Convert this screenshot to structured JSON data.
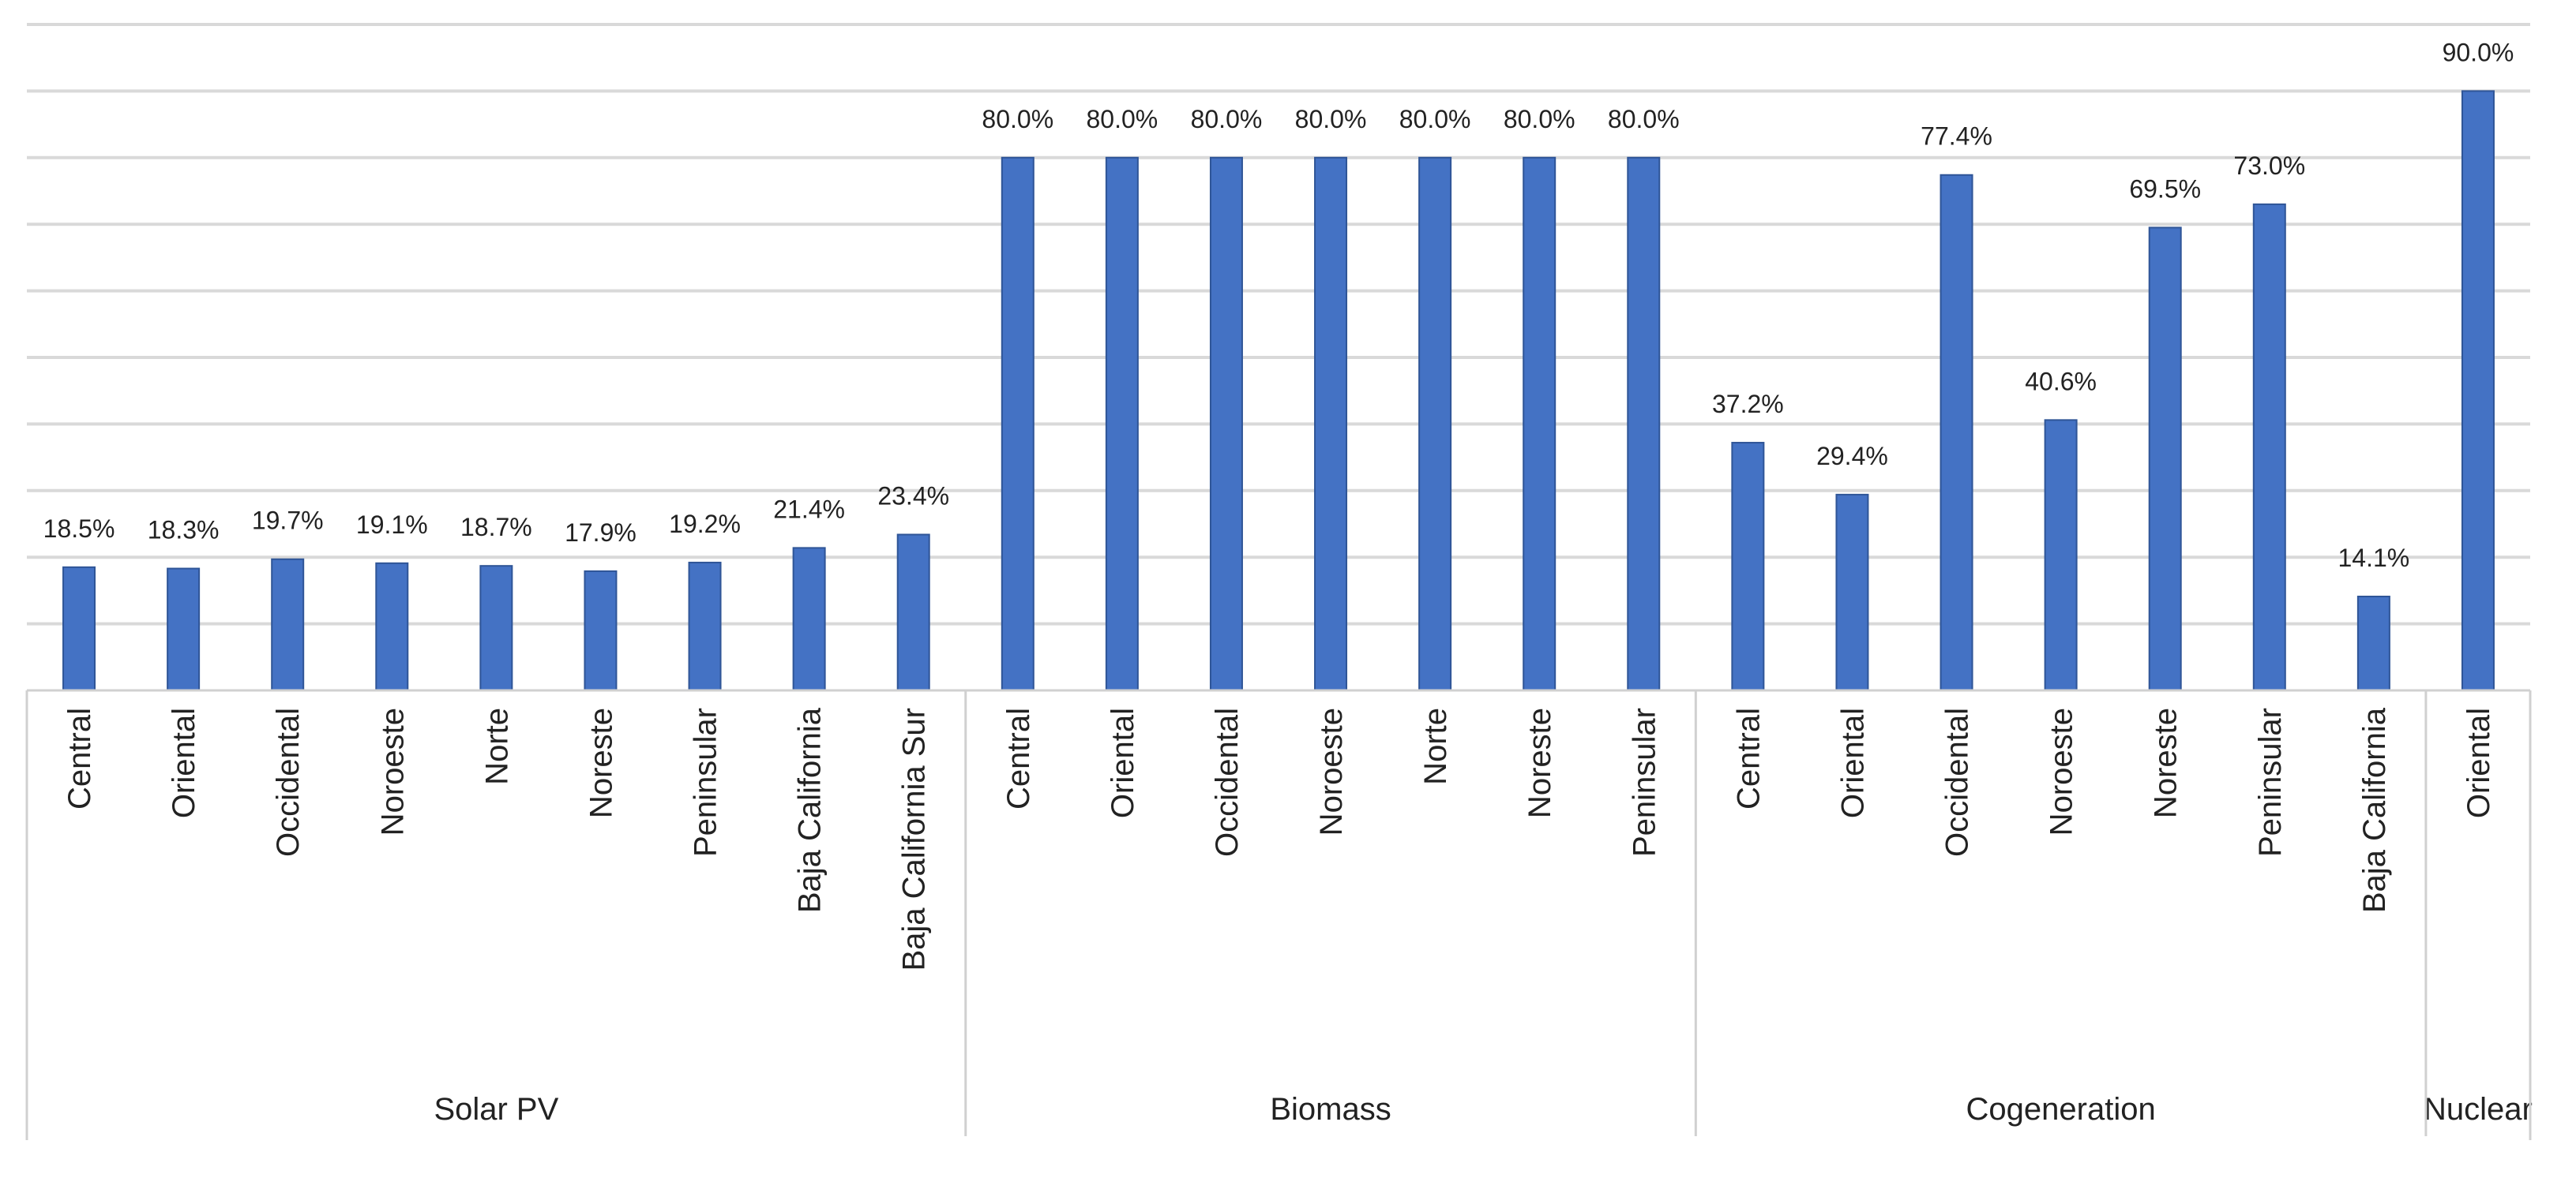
{
  "chart_data": {
    "type": "bar",
    "title": "",
    "xlabel": "",
    "ylabel": "",
    "ylim": [
      0,
      100
    ],
    "grid": true,
    "legend": "none",
    "y_tick_labels_shown": false,
    "bar_color": "#4472c4",
    "groups": [
      {
        "name": "Solar PV",
        "categories": [
          "Central",
          "Oriental",
          "Occidental",
          "Noroeste",
          "Norte",
          "Noreste",
          "Peninsular",
          "Baja California",
          "Baja California Sur"
        ],
        "values": [
          18.5,
          18.3,
          19.7,
          19.1,
          18.7,
          17.9,
          19.2,
          21.4,
          23.4
        ],
        "labels": [
          "18.5%",
          "18.3%",
          "19.7%",
          "19.1%",
          "18.7%",
          "17.9%",
          "19.2%",
          "21.4%",
          "23.4%"
        ]
      },
      {
        "name": "Biomass",
        "categories": [
          "Central",
          "Oriental",
          "Occidental",
          "Noroeste",
          "Norte",
          "Noreste",
          "Peninsular"
        ],
        "values": [
          80.0,
          80.0,
          80.0,
          80.0,
          80.0,
          80.0,
          80.0
        ],
        "labels": [
          "80.0%",
          "80.0%",
          "80.0%",
          "80.0%",
          "80.0%",
          "80.0%",
          "80.0%"
        ]
      },
      {
        "name": "Cogeneration",
        "categories": [
          "Central",
          "Oriental",
          "Occidental",
          "Noroeste",
          "Noreste",
          "Peninsular",
          "Baja California"
        ],
        "values": [
          37.2,
          29.4,
          77.4,
          40.6,
          69.5,
          73.0,
          14.1
        ],
        "labels": [
          "37.2%",
          "29.4%",
          "77.4%",
          "40.6%",
          "69.5%",
          "73.0%",
          "14.1%"
        ]
      },
      {
        "name": "Nuclear",
        "categories": [
          "Oriental"
        ],
        "values": [
          90.0
        ],
        "labels": [
          "90.0%"
        ]
      }
    ]
  }
}
